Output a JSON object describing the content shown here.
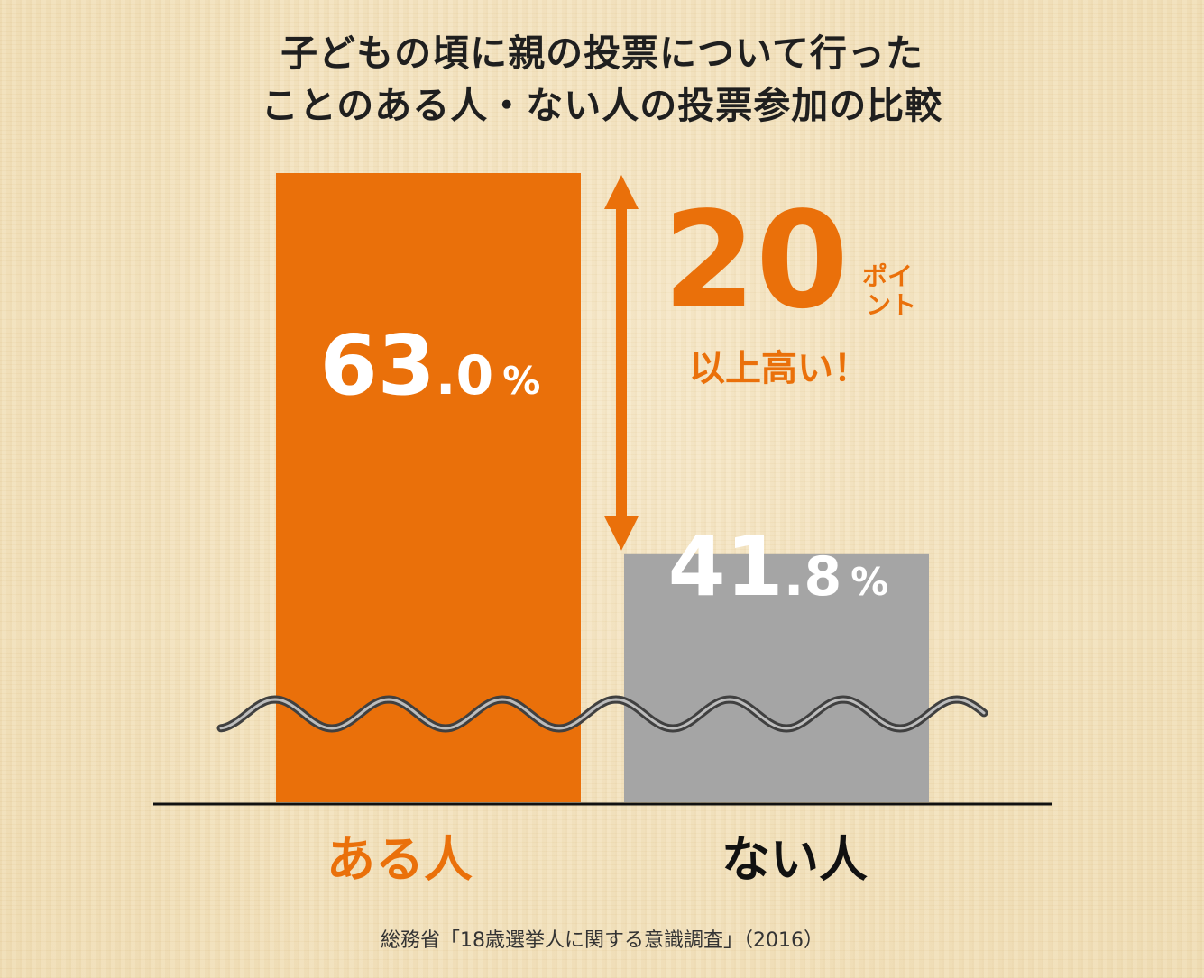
{
  "title": {
    "line1": "子どもの頃に親の投票について行った",
    "line2": "ことのある人・ない人の投票参加の比較"
  },
  "chart_data": {
    "type": "bar",
    "title": "子どもの頃に親の投票について行ったことのある人・ない人の投票参加の比較",
    "categories": [
      "ある人",
      "ない人"
    ],
    "values": [
      63.0,
      41.8
    ],
    "value_labels": [
      {
        "integer": "63",
        "decimal": ".0",
        "unit": "%"
      },
      {
        "integer": "41",
        "decimal": ".8",
        "unit": "%"
      }
    ],
    "axis_break": true,
    "colors": {
      "bar_1": "#ea700a",
      "bar_2": "#a5a5a5",
      "accent": "#ea700a"
    },
    "annotation": {
      "number": "20",
      "unit_top": "ポイ",
      "unit_bottom": "ント",
      "text": "以上高い！"
    }
  },
  "source": "総務省「18歳選挙人に関する意識調査」（2016）"
}
